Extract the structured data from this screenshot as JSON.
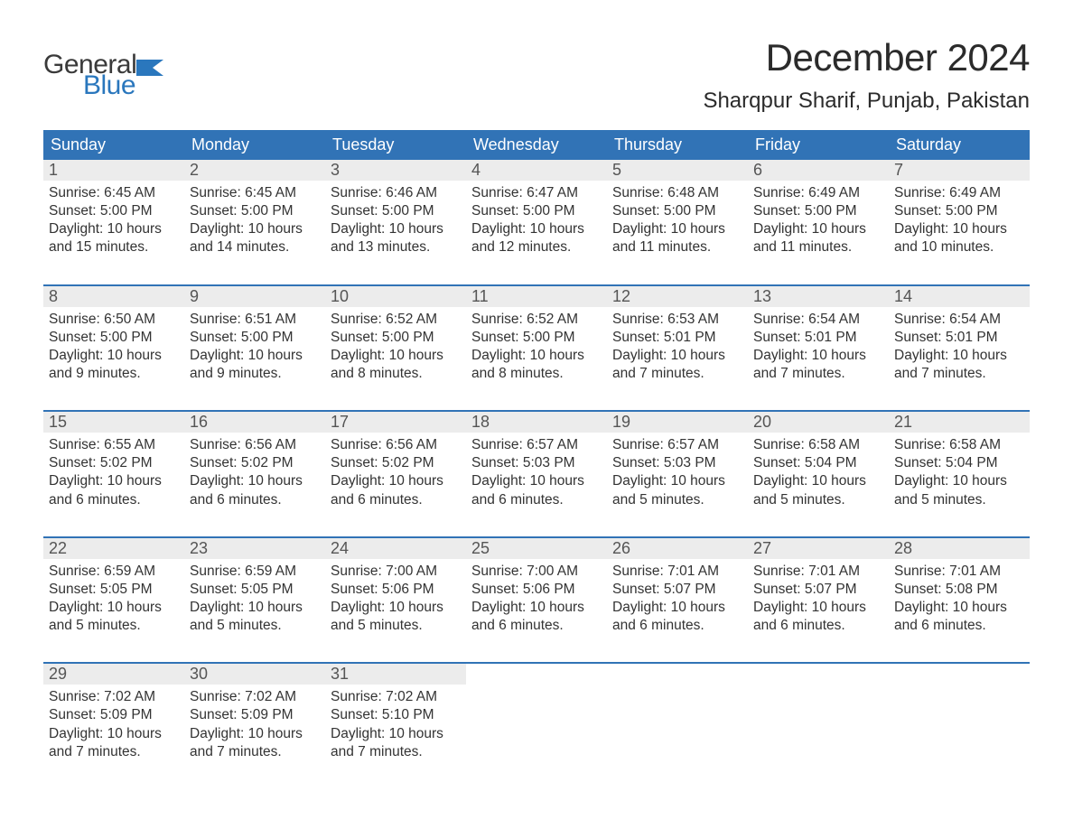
{
  "logo": {
    "general": "General",
    "blue": "Blue"
  },
  "colors": {
    "header_bg": "#3173b6",
    "header_text": "#ffffff",
    "date_bg": "#ececec",
    "date_text": "#555555",
    "body_text": "#333333",
    "accent": "#2a77bd",
    "page_bg": "#ffffff"
  },
  "typography": {
    "month_title_pt": 42,
    "location_pt": 24,
    "day_header_pt": 18,
    "date_pt": 18,
    "body_pt": 15.5,
    "logo_pt": 30
  },
  "title": "December 2024",
  "location": "Sharqpur Sharif, Punjab, Pakistan",
  "day_headers": [
    "Sunday",
    "Monday",
    "Tuesday",
    "Wednesday",
    "Thursday",
    "Friday",
    "Saturday"
  ],
  "weeks": [
    [
      {
        "d": "1",
        "sr": "Sunrise: 6:45 AM",
        "ss": "Sunset: 5:00 PM",
        "dl1": "Daylight: 10 hours",
        "dl2": "and 15 minutes."
      },
      {
        "d": "2",
        "sr": "Sunrise: 6:45 AM",
        "ss": "Sunset: 5:00 PM",
        "dl1": "Daylight: 10 hours",
        "dl2": "and 14 minutes."
      },
      {
        "d": "3",
        "sr": "Sunrise: 6:46 AM",
        "ss": "Sunset: 5:00 PM",
        "dl1": "Daylight: 10 hours",
        "dl2": "and 13 minutes."
      },
      {
        "d": "4",
        "sr": "Sunrise: 6:47 AM",
        "ss": "Sunset: 5:00 PM",
        "dl1": "Daylight: 10 hours",
        "dl2": "and 12 minutes."
      },
      {
        "d": "5",
        "sr": "Sunrise: 6:48 AM",
        "ss": "Sunset: 5:00 PM",
        "dl1": "Daylight: 10 hours",
        "dl2": "and 11 minutes."
      },
      {
        "d": "6",
        "sr": "Sunrise: 6:49 AM",
        "ss": "Sunset: 5:00 PM",
        "dl1": "Daylight: 10 hours",
        "dl2": "and 11 minutes."
      },
      {
        "d": "7",
        "sr": "Sunrise: 6:49 AM",
        "ss": "Sunset: 5:00 PM",
        "dl1": "Daylight: 10 hours",
        "dl2": "and 10 minutes."
      }
    ],
    [
      {
        "d": "8",
        "sr": "Sunrise: 6:50 AM",
        "ss": "Sunset: 5:00 PM",
        "dl1": "Daylight: 10 hours",
        "dl2": "and 9 minutes."
      },
      {
        "d": "9",
        "sr": "Sunrise: 6:51 AM",
        "ss": "Sunset: 5:00 PM",
        "dl1": "Daylight: 10 hours",
        "dl2": "and 9 minutes."
      },
      {
        "d": "10",
        "sr": "Sunrise: 6:52 AM",
        "ss": "Sunset: 5:00 PM",
        "dl1": "Daylight: 10 hours",
        "dl2": "and 8 minutes."
      },
      {
        "d": "11",
        "sr": "Sunrise: 6:52 AM",
        "ss": "Sunset: 5:00 PM",
        "dl1": "Daylight: 10 hours",
        "dl2": "and 8 minutes."
      },
      {
        "d": "12",
        "sr": "Sunrise: 6:53 AM",
        "ss": "Sunset: 5:01 PM",
        "dl1": "Daylight: 10 hours",
        "dl2": "and 7 minutes."
      },
      {
        "d": "13",
        "sr": "Sunrise: 6:54 AM",
        "ss": "Sunset: 5:01 PM",
        "dl1": "Daylight: 10 hours",
        "dl2": "and 7 minutes."
      },
      {
        "d": "14",
        "sr": "Sunrise: 6:54 AM",
        "ss": "Sunset: 5:01 PM",
        "dl1": "Daylight: 10 hours",
        "dl2": "and 7 minutes."
      }
    ],
    [
      {
        "d": "15",
        "sr": "Sunrise: 6:55 AM",
        "ss": "Sunset: 5:02 PM",
        "dl1": "Daylight: 10 hours",
        "dl2": "and 6 minutes."
      },
      {
        "d": "16",
        "sr": "Sunrise: 6:56 AM",
        "ss": "Sunset: 5:02 PM",
        "dl1": "Daylight: 10 hours",
        "dl2": "and 6 minutes."
      },
      {
        "d": "17",
        "sr": "Sunrise: 6:56 AM",
        "ss": "Sunset: 5:02 PM",
        "dl1": "Daylight: 10 hours",
        "dl2": "and 6 minutes."
      },
      {
        "d": "18",
        "sr": "Sunrise: 6:57 AM",
        "ss": "Sunset: 5:03 PM",
        "dl1": "Daylight: 10 hours",
        "dl2": "and 6 minutes."
      },
      {
        "d": "19",
        "sr": "Sunrise: 6:57 AM",
        "ss": "Sunset: 5:03 PM",
        "dl1": "Daylight: 10 hours",
        "dl2": "and 5 minutes."
      },
      {
        "d": "20",
        "sr": "Sunrise: 6:58 AM",
        "ss": "Sunset: 5:04 PM",
        "dl1": "Daylight: 10 hours",
        "dl2": "and 5 minutes."
      },
      {
        "d": "21",
        "sr": "Sunrise: 6:58 AM",
        "ss": "Sunset: 5:04 PM",
        "dl1": "Daylight: 10 hours",
        "dl2": "and 5 minutes."
      }
    ],
    [
      {
        "d": "22",
        "sr": "Sunrise: 6:59 AM",
        "ss": "Sunset: 5:05 PM",
        "dl1": "Daylight: 10 hours",
        "dl2": "and 5 minutes."
      },
      {
        "d": "23",
        "sr": "Sunrise: 6:59 AM",
        "ss": "Sunset: 5:05 PM",
        "dl1": "Daylight: 10 hours",
        "dl2": "and 5 minutes."
      },
      {
        "d": "24",
        "sr": "Sunrise: 7:00 AM",
        "ss": "Sunset: 5:06 PM",
        "dl1": "Daylight: 10 hours",
        "dl2": "and 5 minutes."
      },
      {
        "d": "25",
        "sr": "Sunrise: 7:00 AM",
        "ss": "Sunset: 5:06 PM",
        "dl1": "Daylight: 10 hours",
        "dl2": "and 6 minutes."
      },
      {
        "d": "26",
        "sr": "Sunrise: 7:01 AM",
        "ss": "Sunset: 5:07 PM",
        "dl1": "Daylight: 10 hours",
        "dl2": "and 6 minutes."
      },
      {
        "d": "27",
        "sr": "Sunrise: 7:01 AM",
        "ss": "Sunset: 5:07 PM",
        "dl1": "Daylight: 10 hours",
        "dl2": "and 6 minutes."
      },
      {
        "d": "28",
        "sr": "Sunrise: 7:01 AM",
        "ss": "Sunset: 5:08 PM",
        "dl1": "Daylight: 10 hours",
        "dl2": "and 6 minutes."
      }
    ],
    [
      {
        "d": "29",
        "sr": "Sunrise: 7:02 AM",
        "ss": "Sunset: 5:09 PM",
        "dl1": "Daylight: 10 hours",
        "dl2": "and 7 minutes."
      },
      {
        "d": "30",
        "sr": "Sunrise: 7:02 AM",
        "ss": "Sunset: 5:09 PM",
        "dl1": "Daylight: 10 hours",
        "dl2": "and 7 minutes."
      },
      {
        "d": "31",
        "sr": "Sunrise: 7:02 AM",
        "ss": "Sunset: 5:10 PM",
        "dl1": "Daylight: 10 hours",
        "dl2": "and 7 minutes."
      },
      null,
      null,
      null,
      null
    ]
  ]
}
